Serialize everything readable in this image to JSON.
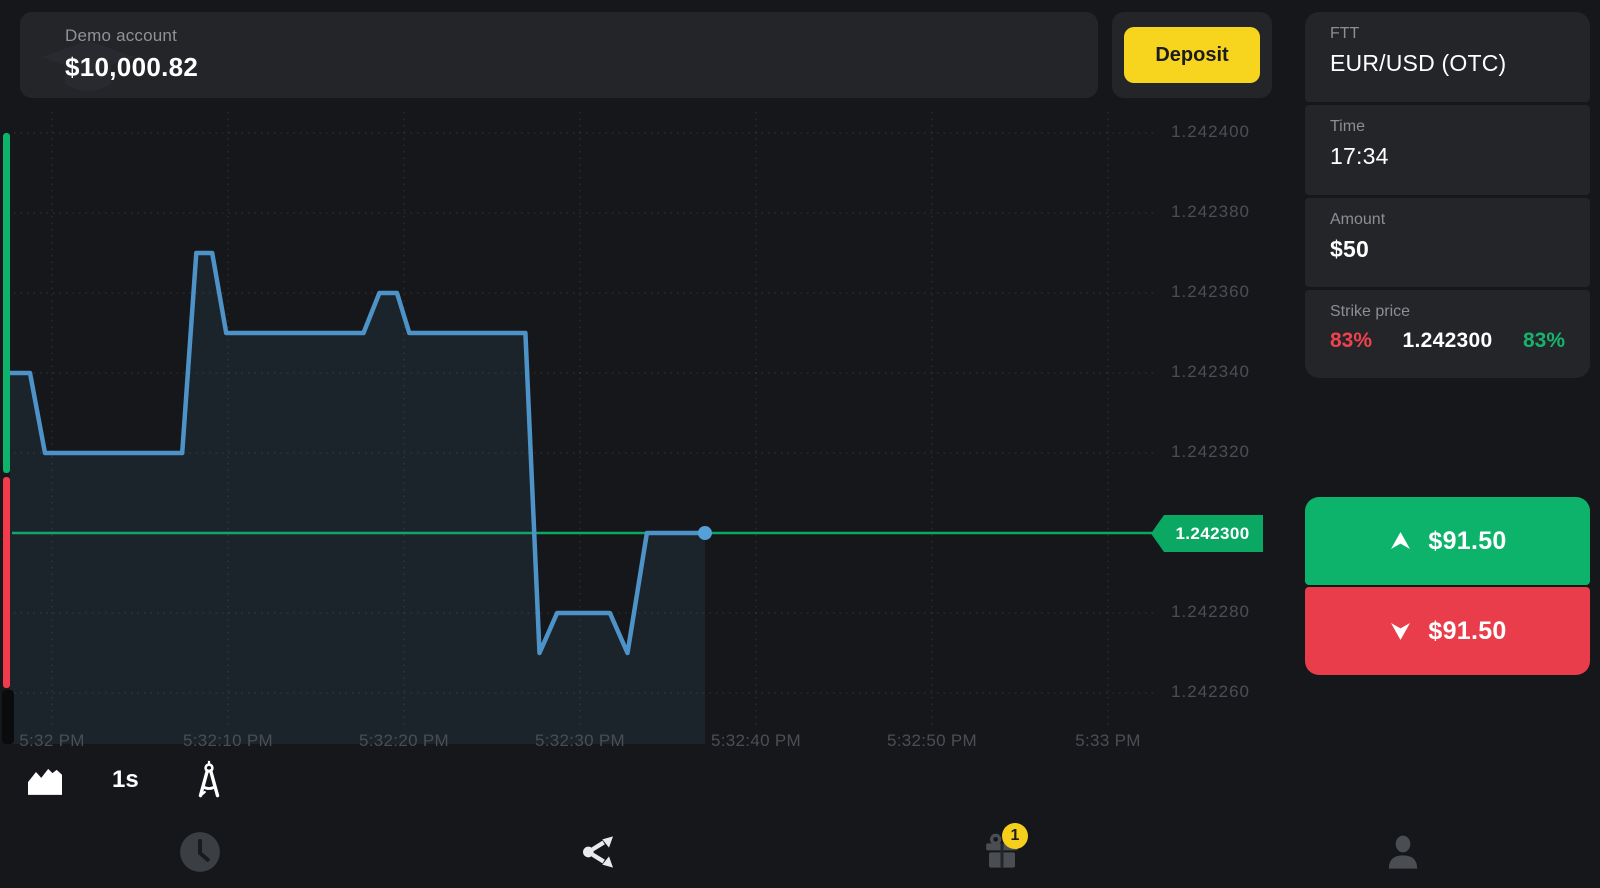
{
  "top_bar": {
    "account_type": "Demo account",
    "balance": "$10,000.82",
    "deposit_label": "Deposit"
  },
  "panel": {
    "asset": {
      "label": "FTT",
      "value": "EUR/USD (OTC)"
    },
    "time": {
      "label": "Time",
      "value": "17:34"
    },
    "amount": {
      "label": "Amount",
      "value": "$50"
    },
    "strike": {
      "label": "Strike price",
      "down_percent": "83%",
      "price": "1.242300",
      "up_percent": "83%"
    }
  },
  "trade": {
    "up_payout": "$91.50",
    "down_payout": "$91.50"
  },
  "toolbar": {
    "timeframe": "1s"
  },
  "nav": {
    "gift_badge": "1"
  },
  "colors": {
    "accent_yellow": "#f7d51e",
    "buy_green": "#0db36b",
    "sell_red": "#ea3d4c",
    "line_blue": "#4e93c8",
    "strike_green": "#0aa862"
  },
  "chart_data": {
    "type": "area",
    "title": "EUR/USD (OTC) 1-second price chart",
    "strike_price": 1.2423,
    "strike_price_label": "1.242300",
    "current_price": 1.2423,
    "ylim": [
      1.24225,
      1.242405
    ],
    "grid": true,
    "y_axis_labels": [
      "1.242400",
      "1.242380",
      "1.242360",
      "1.242340",
      "1.242320",
      "1.242280",
      "1.242260"
    ],
    "x_axis_labels": [
      {
        "text": "5:32 PM",
        "sec": 0
      },
      {
        "text": "5:32:10 PM",
        "sec": 10
      },
      {
        "text": "5:32:20 PM",
        "sec": 20
      },
      {
        "text": "5:32:30 PM",
        "sec": 30
      },
      {
        "text": "5:32:40 PM",
        "sec": 40
      },
      {
        "text": "5:32:50 PM",
        "sec": 50
      },
      {
        "text": "5:33 PM",
        "sec": 60
      }
    ],
    "series": [
      {
        "name": "EUR/USD (OTC)",
        "points": [
          [
            -2.4,
            1.24234
          ],
          [
            -1.25,
            1.24234
          ],
          [
            -0.4,
            1.24232
          ],
          [
            7.4,
            1.24232
          ],
          [
            8.2,
            1.24237
          ],
          [
            9.1,
            1.24237
          ],
          [
            9.9,
            1.24235
          ],
          [
            17.7,
            1.24235
          ],
          [
            18.6,
            1.24236
          ],
          [
            19.6,
            1.24236
          ],
          [
            20.3,
            1.24235
          ],
          [
            26.9,
            1.24235
          ],
          [
            27.7,
            1.24227
          ],
          [
            28.7,
            1.24228
          ],
          [
            31.7,
            1.24228
          ],
          [
            32.7,
            1.24227
          ],
          [
            33.8,
            1.2423
          ],
          [
            37.1,
            1.2423
          ]
        ]
      }
    ]
  }
}
